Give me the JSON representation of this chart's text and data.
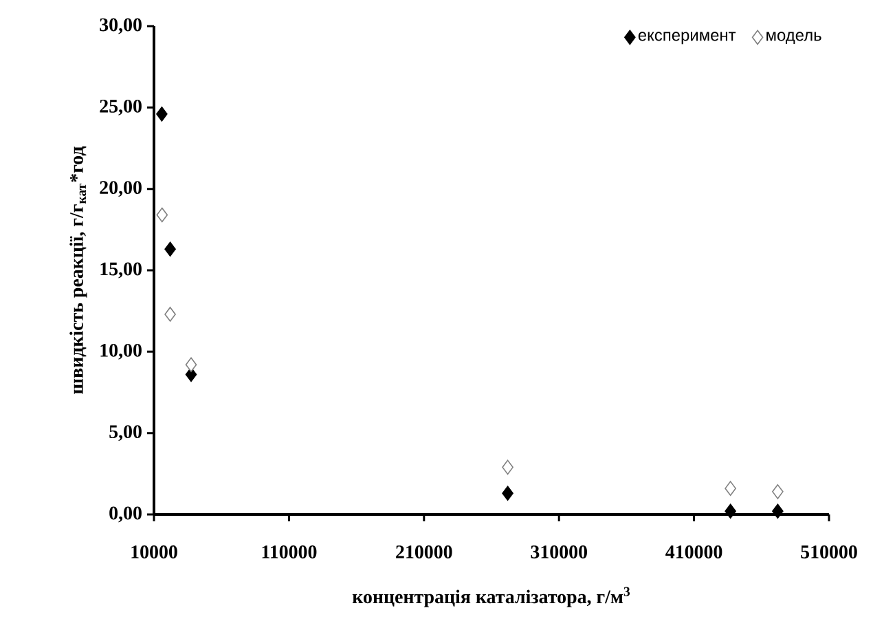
{
  "chart_data": {
    "type": "scatter",
    "xlabel": "концентрація каталізатора, г/м$^{3}$",
    "ylabel": "швидкість реакції, г/г$_{кат}$*год",
    "series": [
      {
        "name": "експеримент",
        "color": "#000000",
        "x": [
          15800,
          22000,
          37500,
          272000,
          437000,
          472000
        ],
        "values": [
          24.6,
          16.3,
          8.6,
          1.3,
          0.2,
          0.2
        ]
      },
      {
        "name": "модель",
        "color": "#7f7f7f",
        "x": [
          16000,
          22000,
          37500,
          272000,
          437000,
          472000
        ],
        "values": [
          18.4,
          12.3,
          9.2,
          2.9,
          1.6,
          1.4
        ]
      }
    ],
    "xlim": [
      10000,
      510000
    ],
    "xticks": [
      10000,
      110000,
      210000,
      310000,
      410000,
      510000
    ],
    "ylim": [
      0,
      30
    ],
    "yticks": [
      {
        "value": 0,
        "label": "0,00"
      },
      {
        "value": 5,
        "label": "5,00"
      },
      {
        "value": 10,
        "label": "10,00"
      },
      {
        "value": 15,
        "label": "15,00"
      },
      {
        "value": 20,
        "label": "20,00"
      },
      {
        "value": 25,
        "label": "25,00"
      },
      {
        "value": 30,
        "label": "30,00"
      }
    ],
    "marker": "diamond",
    "legend": "top right",
    "grid": false
  }
}
